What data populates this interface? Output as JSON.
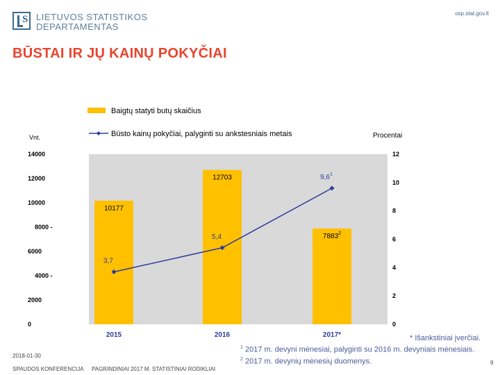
{
  "header": {
    "org_line1": "LIETUVOS STATISTIKOS",
    "org_line2": "DEPARTAMENTAS",
    "url": "osp.stat.gov.lt"
  },
  "page_title": "BŪSTAI IR JŲ KAINŲ POKYČIAI",
  "colors": {
    "bar": "#ffc000",
    "line": "#2e3b9e",
    "title": "#e9442d",
    "plot_bg": "#d9d9d9",
    "label": "#2e3b9e"
  },
  "chart_data": {
    "type": "bar",
    "categories": [
      "2015",
      "2016",
      "2017*"
    ],
    "series": [
      {
        "name": "Baigtų statyti butų skaičius",
        "type": "bar",
        "axis": "left",
        "values": [
          10177,
          12703,
          7883
        ],
        "labels": [
          "10177",
          "12703",
          "7883"
        ],
        "label_sup": [
          "",
          "",
          "2"
        ]
      },
      {
        "name": "Būsto kainų pokyčiai, palyginti su ankstesniais metais",
        "type": "line",
        "axis": "right",
        "values": [
          3.7,
          5.4,
          9.6
        ],
        "labels": [
          "3,7",
          "5,4",
          "9,6"
        ],
        "label_sup": [
          "",
          "",
          "1"
        ]
      }
    ],
    "ylabel_left": "Vnt.",
    "ylabel_right": "Procentai",
    "ylim_left": [
      0,
      14000
    ],
    "ylim_right": [
      0,
      12
    ],
    "yticks_left": [
      "0",
      "2000",
      "4000 -",
      "6000",
      "8000 -",
      "10000",
      "12000",
      "14000"
    ],
    "yticks_right": [
      "0",
      "2",
      "4",
      "6",
      "8",
      "10",
      "12"
    ],
    "legend_position": "top",
    "grid": false
  },
  "notes": {
    "estimate": "* Išankstiniai įverčiai.",
    "note1_sup": "1",
    "note1": " 2017 m. devyni mėnesiai, palyginti su 2016 m. devyniais mėnesiais.",
    "note2_sup": "2",
    "note2": " 2017 m. devynių mėnesių duomenys."
  },
  "footer": {
    "date": "2018-01-30",
    "event": "SPAUDOS KONFERENCIJA",
    "section": "PAGRINDINIAI 2017 M. STATISTINIAI RODIKLIAI",
    "page": "9"
  }
}
